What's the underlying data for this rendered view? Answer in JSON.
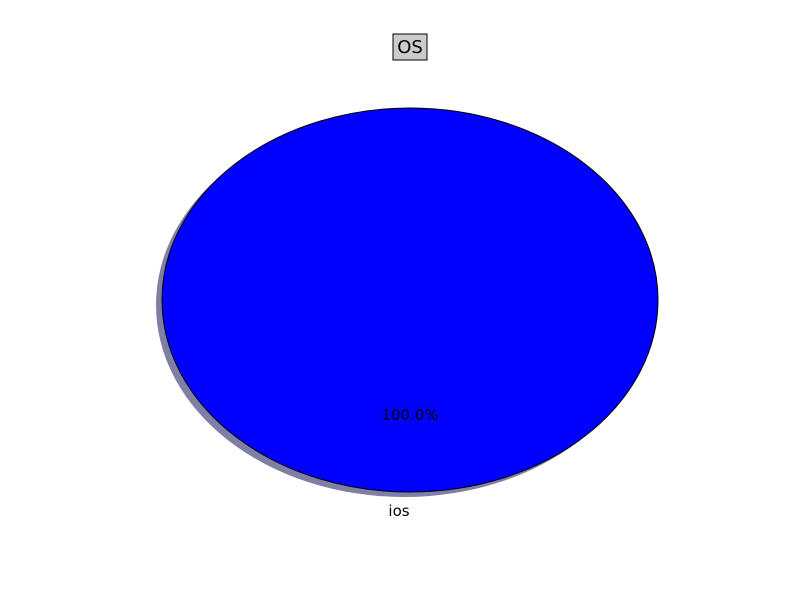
{
  "chart_data": {
    "type": "pie",
    "title": "OS",
    "categories": [
      "ios"
    ],
    "values": [
      100
    ],
    "percent_labels": [
      "100.0%"
    ],
    "colors": [
      "#0000ff"
    ],
    "shadow": true,
    "shadow_color": "#7f7fa6",
    "edge_color": "#000000",
    "legend": "none"
  }
}
